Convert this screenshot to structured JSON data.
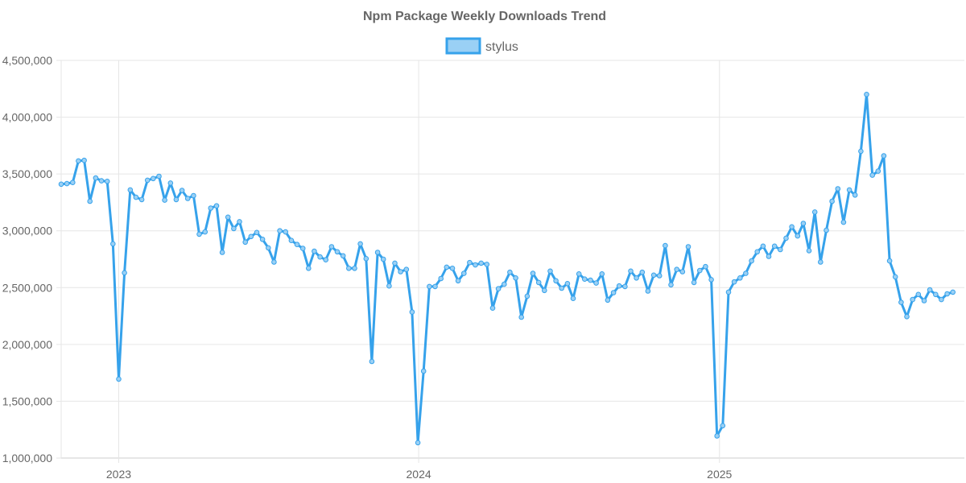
{
  "chart_data": {
    "type": "line",
    "title": "Npm Package Weekly Downloads Trend",
    "xlabel": "",
    "ylabel": "",
    "ylim": [
      1000000,
      4500000
    ],
    "yticks": [
      1000000,
      1500000,
      2000000,
      2500000,
      3000000,
      3500000,
      4000000,
      4500000
    ],
    "ytick_labels": [
      "1,000,000",
      "1,500,000",
      "2,000,000",
      "2,500,000",
      "3,000,000",
      "3,500,000",
      "4,000,000",
      "4,500,000"
    ],
    "xlim": [
      "2022-10-23",
      "2025-10-26"
    ],
    "xticks": [
      "2023-01-01",
      "2024-01-01",
      "2025-01-01"
    ],
    "xtick_labels": [
      "2023",
      "2024",
      "2025"
    ],
    "grid": true,
    "legend_position": "top",
    "x_start": "2022-10-23",
    "x_interval_days": 7,
    "series": [
      {
        "name": "stylus",
        "color": "#36a2eb",
        "fill_color": "#9ad0f5",
        "values": [
          3410000,
          3415000,
          3425000,
          3615000,
          3620000,
          3260000,
          3465000,
          3440000,
          3435000,
          2885000,
          1695000,
          2630000,
          3360000,
          3295000,
          3275000,
          3445000,
          3460000,
          3480000,
          3270000,
          3420000,
          3275000,
          3355000,
          3285000,
          3310000,
          2970000,
          2990000,
          3200000,
          3220000,
          2810000,
          3120000,
          3020000,
          3080000,
          2900000,
          2950000,
          2985000,
          2925000,
          2850000,
          2725000,
          3000000,
          2990000,
          2915000,
          2880000,
          2845000,
          2670000,
          2820000,
          2770000,
          2745000,
          2860000,
          2815000,
          2780000,
          2670000,
          2670000,
          2885000,
          2755000,
          1850000,
          2810000,
          2750000,
          2515000,
          2715000,
          2640000,
          2660000,
          2285000,
          1135000,
          1765000,
          2510000,
          2510000,
          2580000,
          2680000,
          2670000,
          2560000,
          2625000,
          2720000,
          2700000,
          2715000,
          2705000,
          2320000,
          2490000,
          2530000,
          2635000,
          2585000,
          2240000,
          2425000,
          2625000,
          2545000,
          2475000,
          2645000,
          2560000,
          2495000,
          2535000,
          2405000,
          2620000,
          2575000,
          2565000,
          2540000,
          2620000,
          2390000,
          2455000,
          2515000,
          2510000,
          2645000,
          2585000,
          2635000,
          2470000,
          2610000,
          2605000,
          2870000,
          2525000,
          2660000,
          2640000,
          2860000,
          2545000,
          2650000,
          2685000,
          2570000,
          1195000,
          1285000,
          2460000,
          2550000,
          2585000,
          2625000,
          2735000,
          2815000,
          2865000,
          2775000,
          2865000,
          2835000,
          2935000,
          3035000,
          2955000,
          3065000,
          2825000,
          3165000,
          2725000,
          3005000,
          3260000,
          3370000,
          3075000,
          3360000,
          3315000,
          3700000,
          4200000,
          3490000,
          3525000,
          3660000,
          2735000,
          2595000,
          2370000,
          2245000,
          2395000,
          2440000,
          2385000,
          2480000,
          2440000,
          2395000,
          2445000,
          2460000
        ]
      }
    ]
  }
}
